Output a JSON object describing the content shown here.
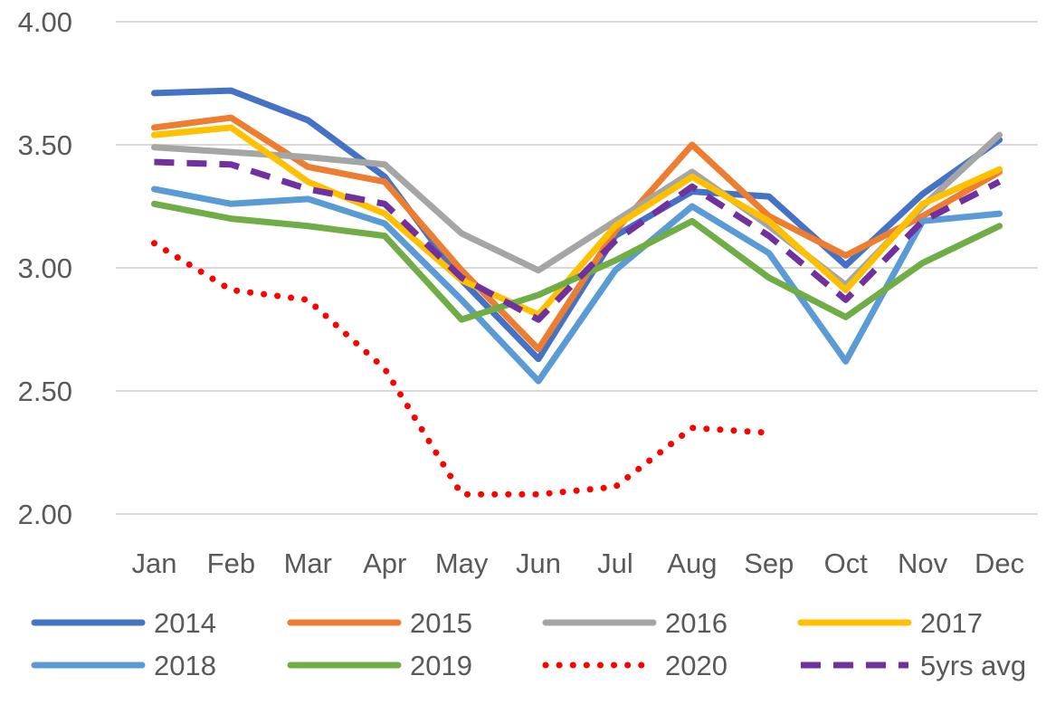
{
  "chart_data": {
    "type": "line",
    "title": "",
    "xlabel": "",
    "ylabel": "",
    "categories": [
      "Jan",
      "Feb",
      "Mar",
      "Apr",
      "May",
      "Jun",
      "Jul",
      "Aug",
      "Sep",
      "Oct",
      "Nov",
      "Dec"
    ],
    "ylim": [
      2.0,
      4.0
    ],
    "yticks": [
      "2.00",
      "2.50",
      "3.00",
      "3.50",
      "4.00"
    ],
    "ytick_values": [
      2.0,
      2.5,
      3.0,
      3.5,
      4.0
    ],
    "grid": true,
    "legend_position": "bottom",
    "series": [
      {
        "name": "2014",
        "color": "#4472C4",
        "style": "solid",
        "values": [
          3.71,
          3.72,
          3.6,
          3.37,
          2.95,
          2.63,
          3.13,
          3.31,
          3.29,
          3.01,
          3.3,
          3.52
        ]
      },
      {
        "name": "2015",
        "color": "#ED7D31",
        "style": "solid",
        "values": [
          3.57,
          3.61,
          3.41,
          3.35,
          2.99,
          2.67,
          3.15,
          3.5,
          3.21,
          3.05,
          3.21,
          3.39
        ]
      },
      {
        "name": "2016",
        "color": "#A5A5A5",
        "style": "solid",
        "values": [
          3.49,
          3.47,
          3.45,
          3.42,
          3.14,
          2.99,
          3.19,
          3.39,
          3.17,
          2.93,
          3.25,
          3.54
        ]
      },
      {
        "name": "2017",
        "color": "#FFC000",
        "style": "solid",
        "values": [
          3.54,
          3.57,
          3.35,
          3.22,
          2.95,
          2.81,
          3.17,
          3.37,
          3.19,
          2.91,
          3.26,
          3.4
        ]
      },
      {
        "name": "2018",
        "color": "#5B9BD5",
        "style": "solid",
        "values": [
          3.32,
          3.26,
          3.28,
          3.18,
          2.87,
          2.54,
          2.99,
          3.25,
          3.06,
          2.62,
          3.19,
          3.22
        ]
      },
      {
        "name": "2019",
        "color": "#70AD47",
        "style": "solid",
        "values": [
          3.26,
          3.2,
          3.17,
          3.13,
          2.79,
          2.89,
          3.03,
          3.19,
          2.96,
          2.8,
          3.02,
          3.17
        ]
      },
      {
        "name": "2020",
        "color": "#FF0000",
        "style": "dotted",
        "values": [
          3.1,
          2.91,
          2.87,
          2.59,
          2.08,
          2.08,
          2.11,
          2.35,
          2.33,
          null,
          null,
          null
        ]
      },
      {
        "name": "5yrs avg",
        "color": "#7030A0",
        "style": "dashed",
        "values": [
          3.43,
          3.42,
          3.32,
          3.26,
          2.96,
          2.79,
          3.11,
          3.33,
          3.13,
          2.87,
          3.19,
          3.35
        ]
      }
    ]
  }
}
